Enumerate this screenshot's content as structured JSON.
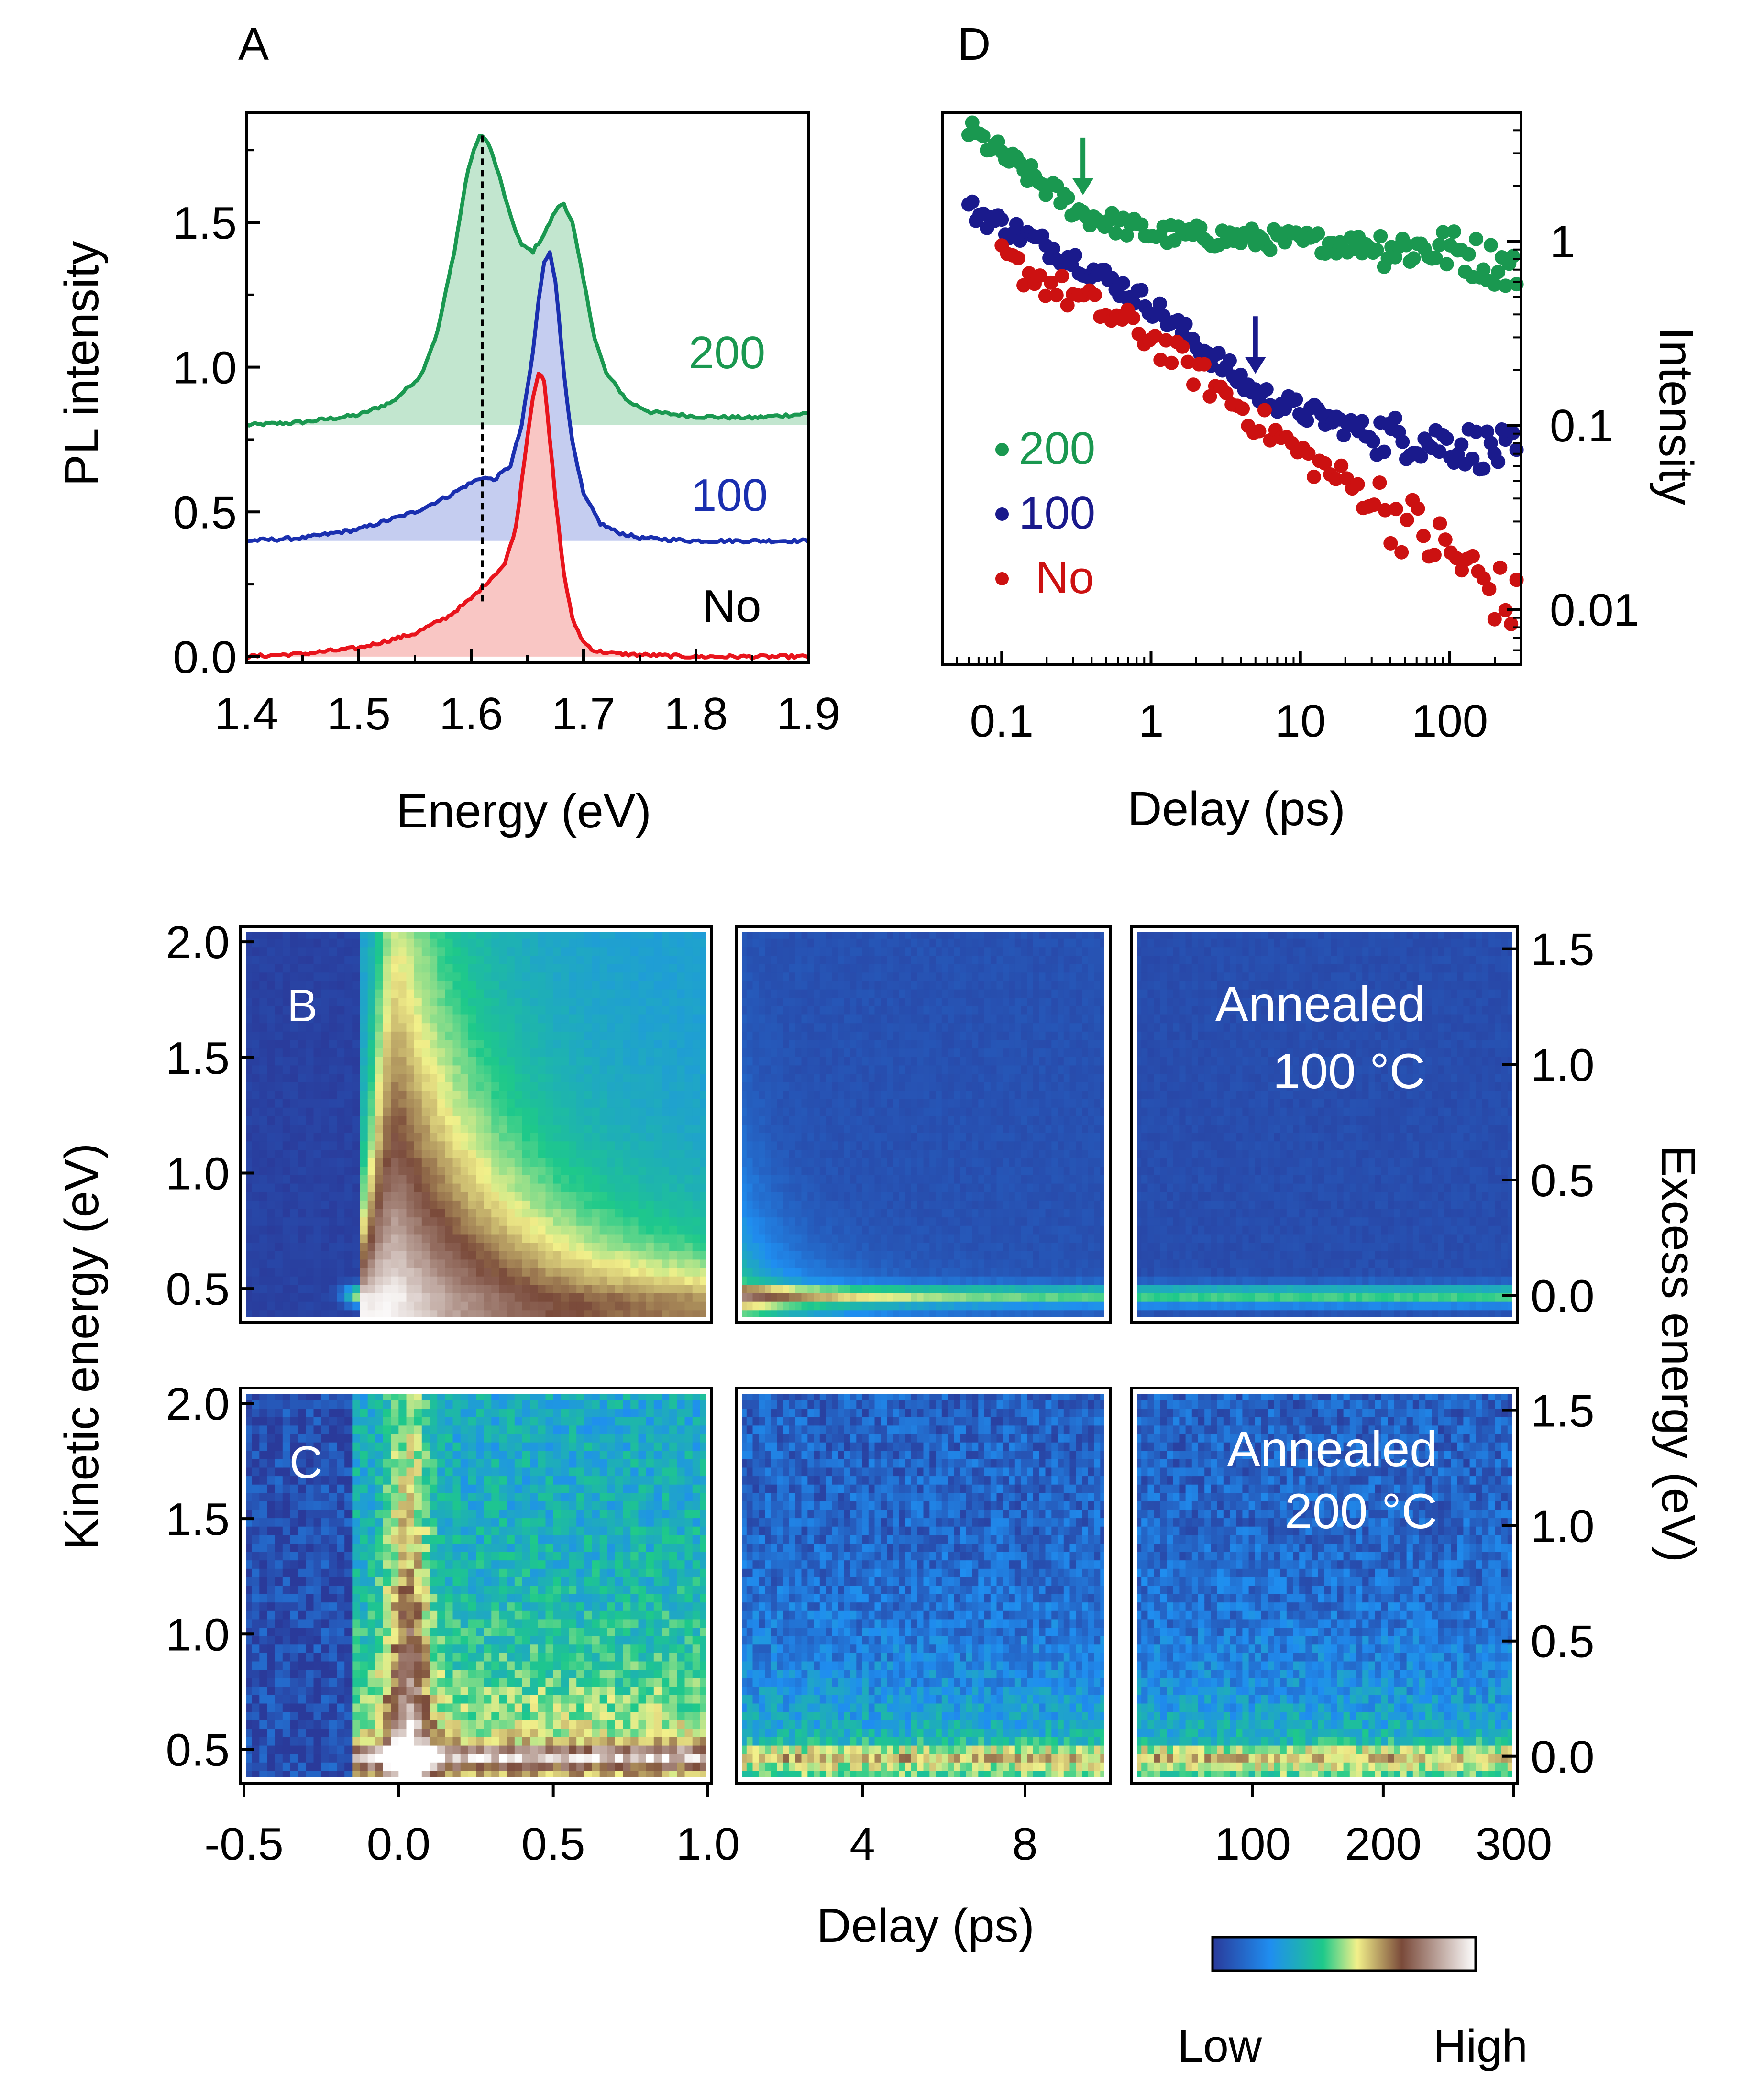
{
  "chart_data": [
    {
      "panel": "A",
      "type": "line",
      "panel_label": "A",
      "xlabel": "Energy (eV)",
      "ylabel": "PL intensity",
      "xlim": [
        1.4,
        1.9
      ],
      "ylim": [
        -0.02,
        1.88
      ],
      "xticks": [
        "1.4",
        "1.5",
        "1.6",
        "1.7",
        "1.8",
        "1.9"
      ],
      "yticks": [
        "0.0",
        "0.5",
        "1.0",
        "1.5"
      ],
      "series": [
        {
          "name": "200",
          "baseline": 0.8,
          "color": "#1a9850",
          "fill": "#c2e6cf",
          "x": [
            1.4,
            1.45,
            1.5,
            1.53,
            1.555,
            1.57,
            1.585,
            1.597,
            1.607,
            1.615,
            1.625,
            1.635,
            1.645,
            1.655,
            1.665,
            1.675,
            1.682,
            1.69,
            1.7,
            1.71,
            1.72,
            1.74,
            1.76,
            1.8,
            1.85,
            1.9
          ],
          "y": [
            0.8,
            0.81,
            0.835,
            0.88,
            0.97,
            1.12,
            1.4,
            1.68,
            1.8,
            1.78,
            1.66,
            1.52,
            1.42,
            1.4,
            1.46,
            1.54,
            1.57,
            1.5,
            1.3,
            1.1,
            0.98,
            0.88,
            0.845,
            0.83,
            0.825,
            0.84
          ]
        },
        {
          "name": "100",
          "baseline": 0.4,
          "color": "#1a2faf",
          "fill": "#c5cdf0",
          "x": [
            1.4,
            1.45,
            1.5,
            1.55,
            1.58,
            1.595,
            1.61,
            1.62,
            1.635,
            1.645,
            1.655,
            1.66,
            1.665,
            1.67,
            1.675,
            1.682,
            1.69,
            1.7,
            1.715,
            1.73,
            1.75,
            1.8,
            1.85,
            1.9
          ],
          "y": [
            0.4,
            0.41,
            0.44,
            0.5,
            0.555,
            0.59,
            0.62,
            0.61,
            0.66,
            0.8,
            1.05,
            1.23,
            1.36,
            1.4,
            1.3,
            1.0,
            0.74,
            0.56,
            0.46,
            0.43,
            0.41,
            0.4,
            0.4,
            0.4
          ]
        },
        {
          "name": "No",
          "baseline": 0.0,
          "color": "#e8141c",
          "fill": "#f9c6c4",
          "x": [
            1.4,
            1.45,
            1.5,
            1.55,
            1.58,
            1.6,
            1.615,
            1.63,
            1.64,
            1.648,
            1.655,
            1.66,
            1.665,
            1.67,
            1.675,
            1.682,
            1.69,
            1.7,
            1.71,
            1.73,
            1.76,
            1.8,
            1.85,
            1.9
          ],
          "y": [
            0.0,
            0.01,
            0.03,
            0.08,
            0.14,
            0.2,
            0.26,
            0.32,
            0.45,
            0.7,
            0.9,
            0.98,
            0.95,
            0.75,
            0.55,
            0.3,
            0.13,
            0.05,
            0.02,
            0.01,
            0.005,
            0.0,
            0.0,
            0.0
          ]
        }
      ],
      "labels": [
        "200",
        "100",
        "No"
      ],
      "marker_line_x": 1.61
    },
    {
      "panel": "D",
      "type": "scatter",
      "panel_label": "D",
      "xlabel": "Delay (ps)",
      "ylabel": "Intensity",
      "xscale": "log",
      "yscale": "log",
      "xlim": [
        0.04,
        300
      ],
      "ylim": [
        0.005,
        5
      ],
      "xticks": [
        "0.1",
        "1",
        "10",
        "100"
      ],
      "yticks": [
        "1",
        "0.1",
        "0.01"
      ],
      "legend": [
        "200",
        "100",
        "No"
      ],
      "legend_position": "bottom-left",
      "series": [
        {
          "name": "200",
          "color": "#1a9850",
          "x0": 0.06,
          "y0": 4.0,
          "knots_t": [
            0.06,
            0.35,
            1,
            10,
            100,
            280
          ],
          "knots_y": [
            4.0,
            1.4,
            1.1,
            1.0,
            0.9,
            0.7
          ],
          "scatter": 0.12
        },
        {
          "name": "100",
          "color": "#1a1a8c",
          "knots_t": [
            0.06,
            0.3,
            1,
            5,
            10,
            30,
            100,
            280
          ],
          "knots_y": [
            1.5,
            0.8,
            0.45,
            0.15,
            0.12,
            0.09,
            0.08,
            0.07
          ],
          "scatter": 0.12
        },
        {
          "name": "No",
          "color": "#cc1111",
          "knots_t": [
            0.1,
            0.3,
            1,
            3,
            10,
            30,
            100,
            280
          ],
          "knots_y": [
            0.8,
            0.5,
            0.3,
            0.15,
            0.07,
            0.04,
            0.02,
            0.01
          ],
          "scatter": 0.18
        }
      ],
      "arrows": [
        {
          "series": "200",
          "x": 0.35
        },
        {
          "series": "100",
          "x": 5
        }
      ]
    },
    {
      "panel": "B",
      "type": "heatmap",
      "panel_label": "B",
      "annotation": [
        "Annealed",
        "100 °C"
      ],
      "ylabel_left": "Kinetic energy (eV)",
      "ylabel_right": "Excess energy (eV)",
      "left_yticks": [
        "2.0",
        "1.5",
        "1.0",
        "0.5"
      ],
      "right_yticks": [
        "1.5",
        "1.0",
        "0.5",
        "0.0"
      ],
      "energy_range": [
        0.37,
        2.05
      ],
      "band_energy": 0.47
    },
    {
      "panel": "C",
      "type": "heatmap",
      "panel_label": "C",
      "annotation": [
        "Annealed",
        "200 °C"
      ],
      "left_yticks": [
        "2.0",
        "1.5",
        "1.0",
        "0.5"
      ],
      "right_yticks": [
        "1.5",
        "1.0",
        "0.5",
        "0.0"
      ],
      "energy_range": [
        0.37,
        2.05
      ],
      "band_energy": 0.47
    }
  ],
  "shared_x": {
    "xlabel": "Delay (ps)",
    "segments": [
      {
        "range": [
          -0.5,
          1.0
        ],
        "ticks": [
          "-0.5",
          "0.0",
          "0.5",
          "1.0"
        ]
      },
      {
        "range": [
          1.0,
          10.0
        ],
        "ticks": [
          "4",
          "8"
        ]
      },
      {
        "range": [
          10,
          300
        ],
        "ticks": [
          "100",
          "200",
          "300"
        ]
      }
    ]
  },
  "colorbar": {
    "low_label": "Low",
    "high_label": "High",
    "colors": [
      "#2a3a9a",
      "#1f8ef0",
      "#1ec98a",
      "#f2f08a",
      "#7a4a3a",
      "#ffffff"
    ]
  }
}
